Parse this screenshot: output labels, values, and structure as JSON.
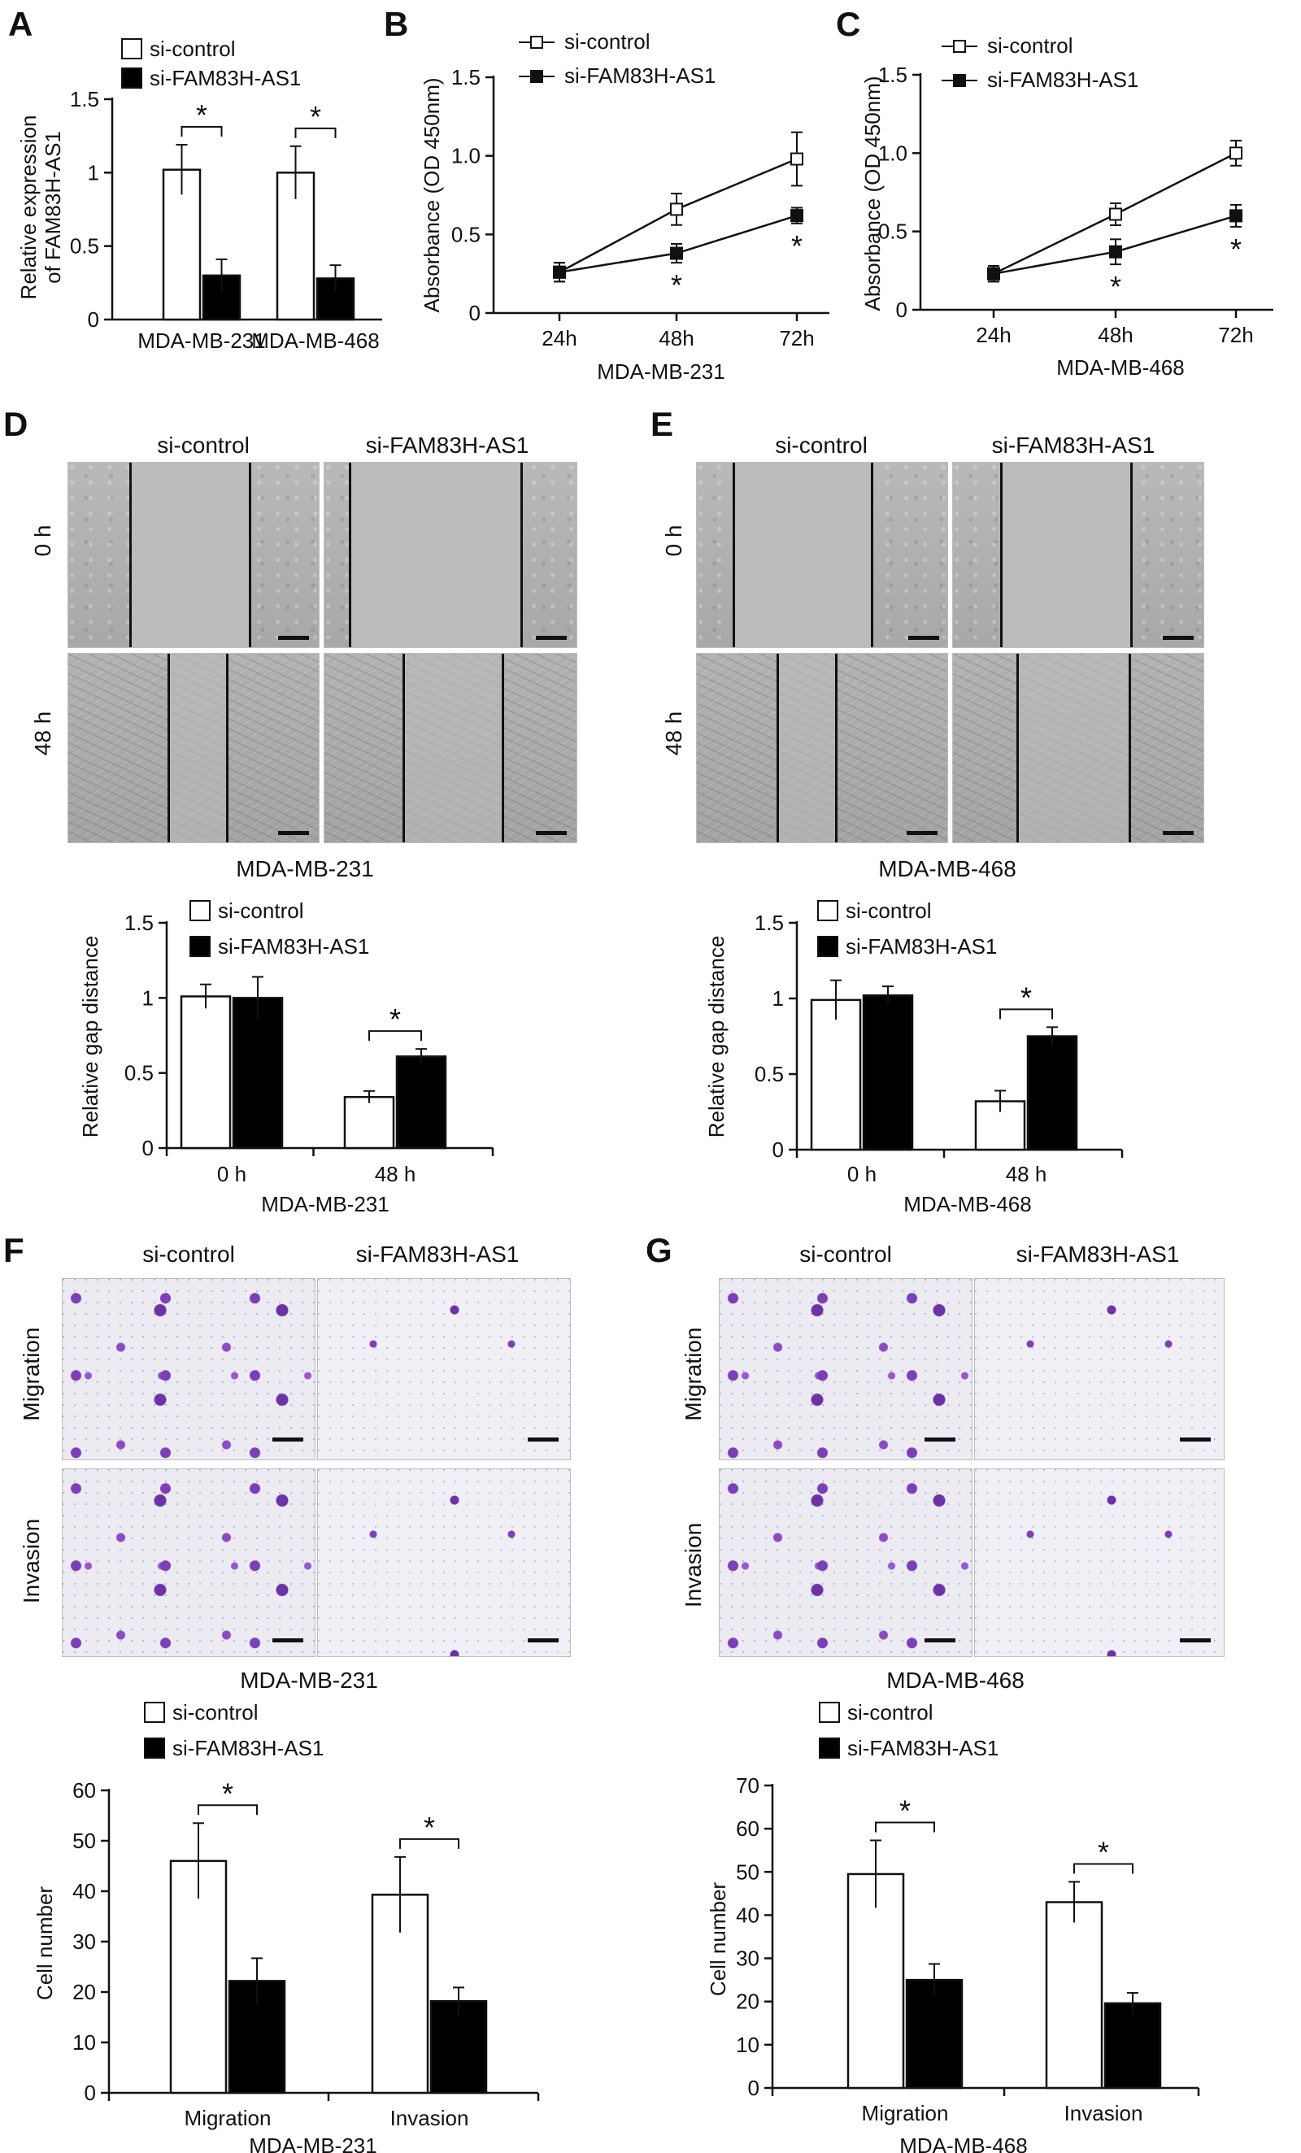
{
  "panels": {
    "A": {
      "letter": "A",
      "ylabel_line1": "Relative expression",
      "ylabel_line2": "of FAM83H-AS1"
    },
    "B": {
      "letter": "B"
    },
    "C": {
      "letter": "C"
    },
    "D": {
      "letter": "D",
      "col1": "si-control",
      "col2": "si-FAM83H-AS1",
      "row1": "0 h",
      "row2": "48 h",
      "caption": "MDA-MB-231"
    },
    "E": {
      "letter": "E",
      "col1": "si-control",
      "col2": "si-FAM83H-AS1",
      "row1": "0 h",
      "row2": "48 h",
      "caption": "MDA-MB-468"
    },
    "F": {
      "letter": "F",
      "col1": "si-control",
      "col2": "si-FAM83H-AS1",
      "row1": "Migration",
      "row2": "Invasion",
      "caption": "MDA-MB-231"
    },
    "G": {
      "letter": "G",
      "col1": "si-control",
      "col2": "si-FAM83H-AS1",
      "row1": "Migration",
      "row2": "Invasion",
      "caption": "MDA-MB-468"
    }
  },
  "chart_data": [
    {
      "id": "A",
      "type": "bar",
      "ylabel": "Relative expression of FAM83H-AS1",
      "categories": [
        "MDA-MB-231",
        "MDA-MB-468"
      ],
      "ylim": [
        0,
        1.5
      ],
      "yticks": [
        0,
        0.5,
        1,
        1.5
      ],
      "ytick_labels": [
        "0",
        "0.5",
        "1",
        "1.5"
      ],
      "series": [
        {
          "name": "si-control",
          "values": [
            1.02,
            1.0
          ],
          "errors": [
            0.17,
            0.18
          ],
          "fill": "#ffffff"
        },
        {
          "name": "si-FAM83H-AS1",
          "values": [
            0.3,
            0.28
          ],
          "errors": [
            0.11,
            0.09
          ],
          "fill": "#000000"
        }
      ],
      "significance": [
        {
          "category": 0,
          "label": "*"
        },
        {
          "category": 1,
          "label": "*"
        }
      ],
      "legend": "top"
    },
    {
      "id": "B",
      "type": "line",
      "ylabel": "Absorbance (OD 450nm)",
      "xlabel": "MDA-MB-231",
      "categories": [
        "24h",
        "48h",
        "72h"
      ],
      "ylim": [
        0,
        1.5
      ],
      "yticks": [
        0,
        0.5,
        1.0,
        1.5
      ],
      "ytick_labels": [
        "0",
        "0.5",
        "1.0",
        "1.5"
      ],
      "series": [
        {
          "name": "si-control",
          "values": [
            0.26,
            0.66,
            0.98
          ],
          "errors": [
            0.06,
            0.1,
            0.17
          ],
          "marker": "open-square"
        },
        {
          "name": "si-FAM83H-AS1",
          "values": [
            0.26,
            0.38,
            0.62
          ],
          "errors": [
            0.06,
            0.06,
            0.05
          ],
          "marker": "filled-square"
        }
      ],
      "significance": [
        {
          "category": 1,
          "label": "*"
        },
        {
          "category": 2,
          "label": "*"
        }
      ],
      "legend": "top"
    },
    {
      "id": "C",
      "type": "line",
      "ylabel": "Absorbance (OD 450nm)",
      "xlabel": "MDA-MB-468",
      "categories": [
        "24h",
        "48h",
        "72h"
      ],
      "ylim": [
        0,
        1.5
      ],
      "yticks": [
        0,
        0.5,
        1.0,
        1.5
      ],
      "ytick_labels": [
        "0",
        "0.5",
        "1.0",
        "1.5"
      ],
      "series": [
        {
          "name": "si-control",
          "values": [
            0.23,
            0.61,
            1.0
          ],
          "errors": [
            0.05,
            0.07,
            0.08
          ],
          "marker": "open-square"
        },
        {
          "name": "si-FAM83H-AS1",
          "values": [
            0.23,
            0.37,
            0.6
          ],
          "errors": [
            0.05,
            0.08,
            0.07
          ],
          "marker": "filled-square"
        }
      ],
      "significance": [
        {
          "category": 1,
          "label": "*"
        },
        {
          "category": 2,
          "label": "*"
        }
      ],
      "legend": "top"
    },
    {
      "id": "D",
      "type": "bar",
      "ylabel": "Relative gap distance",
      "xlabel": "MDA-MB-231",
      "categories": [
        "0 h",
        "48 h"
      ],
      "ylim": [
        0,
        1.5
      ],
      "yticks": [
        0,
        0.5,
        1,
        1.5
      ],
      "ytick_labels": [
        "0",
        "0.5",
        "1",
        "1.5"
      ],
      "series": [
        {
          "name": "si-control",
          "values": [
            1.01,
            0.34
          ],
          "errors": [
            0.08,
            0.04
          ],
          "fill": "#ffffff"
        },
        {
          "name": "si-FAM83H-AS1",
          "values": [
            1.0,
            0.61
          ],
          "errors": [
            0.14,
            0.05
          ],
          "fill": "#000000"
        }
      ],
      "significance": [
        {
          "category": 1,
          "label": "*"
        }
      ],
      "legend": "top"
    },
    {
      "id": "E",
      "type": "bar",
      "ylabel": "Relative gap distance",
      "xlabel": "MDA-MB-468",
      "categories": [
        "0 h",
        "48 h"
      ],
      "ylim": [
        0,
        1.5
      ],
      "yticks": [
        0,
        0.5,
        1,
        1.5
      ],
      "ytick_labels": [
        "0",
        "0.5",
        "1",
        "1.5"
      ],
      "series": [
        {
          "name": "si-control",
          "values": [
            0.99,
            0.32
          ],
          "errors": [
            0.13,
            0.07
          ],
          "fill": "#ffffff"
        },
        {
          "name": "si-FAM83H-AS1",
          "values": [
            1.02,
            0.75
          ],
          "errors": [
            0.06,
            0.06
          ],
          "fill": "#000000"
        }
      ],
      "significance": [
        {
          "category": 1,
          "label": "*"
        }
      ],
      "legend": "top"
    },
    {
      "id": "F",
      "type": "bar",
      "ylabel": "Cell number",
      "xlabel": "MDA-MB-231",
      "categories": [
        "Migration",
        "Invasion"
      ],
      "ylim": [
        0,
        60
      ],
      "yticks": [
        0,
        10,
        20,
        30,
        40,
        50,
        60
      ],
      "ytick_labels": [
        "0",
        "10",
        "20",
        "30",
        "40",
        "50",
        "60"
      ],
      "series": [
        {
          "name": "si-control",
          "values": [
            46,
            39.3
          ],
          "errors": [
            7.5,
            7.5
          ],
          "fill": "#ffffff"
        },
        {
          "name": "si-FAM83H-AS1",
          "values": [
            22.2,
            18.2
          ],
          "errors": [
            4.5,
            2.7
          ],
          "fill": "#000000"
        }
      ],
      "significance": [
        {
          "category": 0,
          "label": "*"
        },
        {
          "category": 1,
          "label": "*"
        }
      ],
      "legend": "top"
    },
    {
      "id": "G",
      "type": "bar",
      "ylabel": "Cell number",
      "xlabel": "MDA-MB-468",
      "categories": [
        "Migration",
        "Invasion"
      ],
      "ylim": [
        0,
        70
      ],
      "yticks": [
        0,
        10,
        20,
        30,
        40,
        50,
        60,
        70
      ],
      "ytick_labels": [
        "0",
        "10",
        "20",
        "30",
        "40",
        "50",
        "60",
        "70"
      ],
      "series": [
        {
          "name": "si-control",
          "values": [
            49.5,
            43.0
          ],
          "errors": [
            7.8,
            4.7
          ],
          "fill": "#ffffff"
        },
        {
          "name": "si-FAM83H-AS1",
          "values": [
            25.0,
            19.6
          ],
          "errors": [
            3.7,
            2.4
          ],
          "fill": "#000000"
        }
      ],
      "significance": [
        {
          "category": 0,
          "label": "*"
        },
        {
          "category": 1,
          "label": "*"
        }
      ],
      "legend": "top"
    }
  ]
}
